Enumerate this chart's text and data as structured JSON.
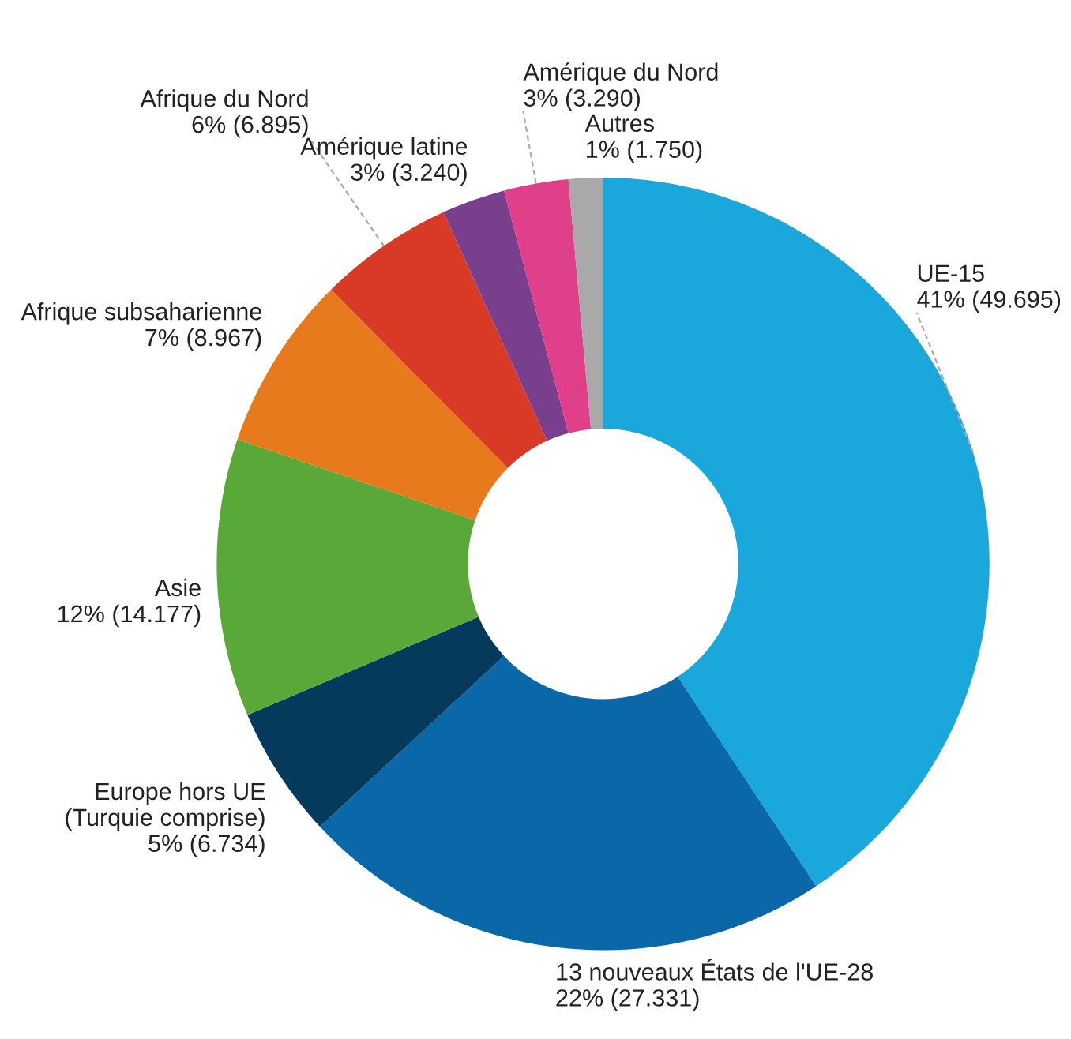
{
  "chart_data": {
    "type": "donut",
    "categories": [
      "UE-15",
      "13 nouveaux États de l'UE-28",
      "Europe hors UE (Turquie comprise)",
      "Asie",
      "Afrique subsaharienne",
      "Afrique du Nord",
      "Amérique latine",
      "Amérique du Nord",
      "Autres"
    ],
    "values": [
      49695,
      27331,
      6734,
      14177,
      8967,
      6895,
      3240,
      3290,
      1750
    ],
    "value_labels": [
      "41% (49.695)",
      "22% (27.331)",
      "5% (6.734)",
      "12% (14.177)",
      "7% (8.967)",
      "6% (6.895)",
      "3% (3.240)",
      "3% (3.290)",
      "1% (1.750)"
    ],
    "colors": [
      "#1aa8dc",
      "#0a67a8",
      "#063a5c",
      "#5aa838",
      "#e87a1e",
      "#d93a25",
      "#7a3f8c",
      "#e0408a",
      "#a9a9a9"
    ],
    "legend": false
  }
}
